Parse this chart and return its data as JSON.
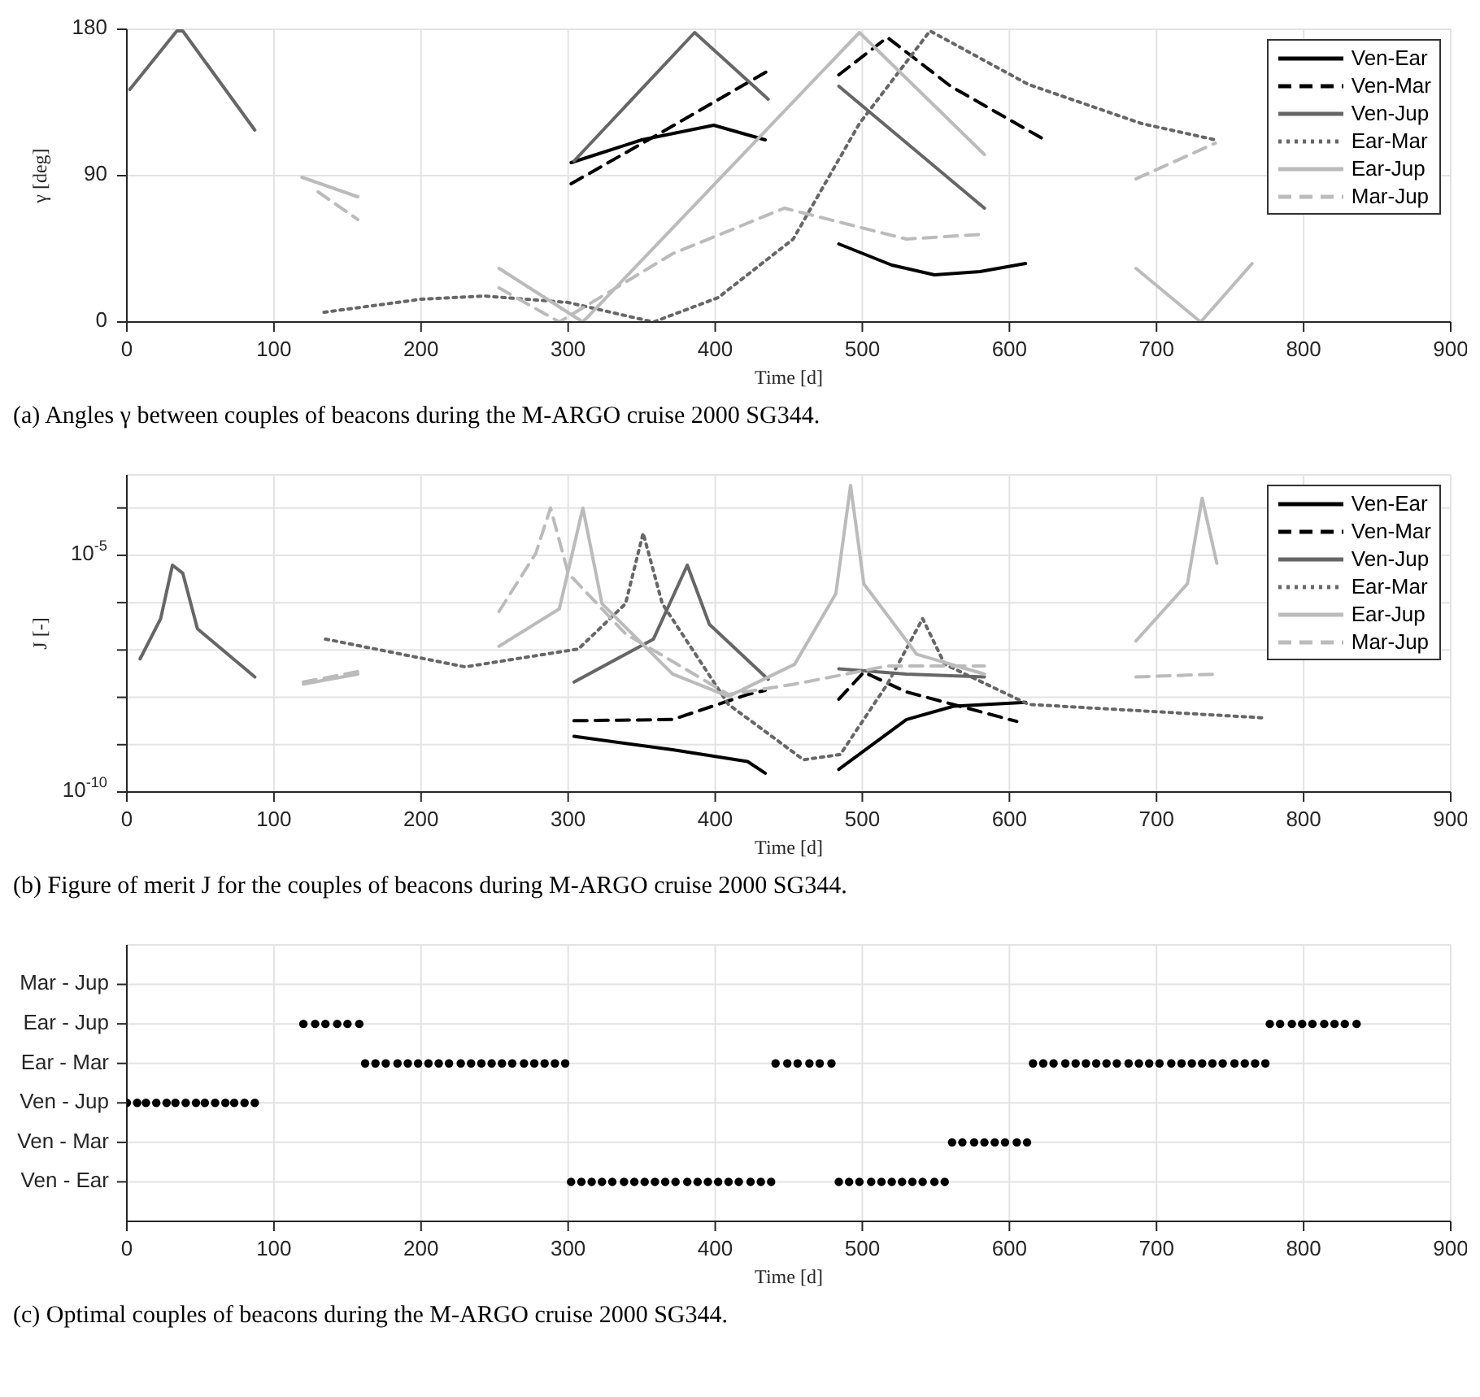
{
  "chart_data": [
    {
      "type": "line",
      "title": "(a) Angles γ between couples of beacons during the M-ARGO cruise 2000 SG344.",
      "xlabel": "Time [d]",
      "ylabel": "γ [deg]",
      "xlim": [
        0,
        900
      ],
      "xticks": [
        0,
        100,
        200,
        300,
        400,
        500,
        600,
        700,
        800,
        900
      ],
      "ylim": [
        0,
        180
      ],
      "yticks": [
        0,
        90,
        180
      ],
      "grid": true,
      "legend": "top right",
      "series": [
        {
          "name": "Ven-Ear",
          "color": "#000000",
          "line_style": "solid",
          "x": [
            302,
            350,
            399,
            434,
            460,
            484,
            520,
            549,
            580,
            611
          ],
          "values": [
            98,
            112,
            121,
            112,
            null,
            48,
            35,
            29,
            31,
            36
          ]
        },
        {
          "name": "Ven-Mar",
          "color": "#000000",
          "line_style": "dashed",
          "x": [
            302,
            370,
            437,
            460,
            484,
            517,
            560,
            626
          ],
          "values": [
            85,
            120,
            155,
            null,
            152,
            175,
            145,
            111
          ]
        },
        {
          "name": "Ven-Jup",
          "color": "#666666",
          "line_style": "solid",
          "x": [
            2,
            34,
            38,
            87,
            200,
            304,
            386,
            436,
            460,
            484,
            583
          ],
          "values": [
            143,
            179,
            179,
            118,
            null,
            99,
            178,
            137,
            null,
            145,
            70
          ]
        },
        {
          "name": "Ear-Mar",
          "color": "#666666",
          "line_style": "dotted",
          "x": [
            134,
            200,
            243,
            300,
            358,
            402,
            453,
            498,
            546,
            613,
            690,
            740
          ],
          "values": [
            6,
            14,
            16,
            12,
            0,
            15,
            51,
            122,
            179,
            146,
            122,
            112
          ]
        },
        {
          "name": "Ear-Jup",
          "color": "#bbbbbb",
          "line_style": "solid",
          "x": [
            119,
            157,
            200,
            253,
            310,
            498,
            583,
            640,
            686,
            730,
            765
          ],
          "values": [
            89,
            77,
            null,
            33,
            0,
            178,
            103,
            null,
            33,
            0,
            36
          ]
        },
        {
          "name": "Mar-Jup",
          "color": "#bbbbbb",
          "line_style": "dashed",
          "x": [
            130,
            157,
            200,
            253,
            294,
            371,
            447,
            530,
            583,
            640,
            686,
            740
          ],
          "values": [
            80,
            63,
            null,
            21,
            0,
            42,
            70,
            51,
            54,
            null,
            88,
            110
          ]
        }
      ]
    },
    {
      "type": "line",
      "title": "(b) Figure of merit J for the couples of beacons during M-ARGO cruise 2000 SG344.",
      "xlabel": "Time [d]",
      "ylabel": "J [-]",
      "log": "y",
      "xlim": [
        0,
        900
      ],
      "xticks": [
        0,
        100,
        200,
        300,
        400,
        500,
        600,
        700,
        800,
        900
      ],
      "ylim": [
        1e-10,
        0.0005
      ],
      "yticks": [
        {
          "value": 1e-10,
          "label": "10$^{-10}$"
        },
        {
          "value": 1e-09,
          "label": null
        },
        {
          "value": 1e-08,
          "label": null
        },
        {
          "value": 1e-07,
          "label": null
        },
        {
          "value": 1e-06,
          "label": null
        },
        {
          "value": 1e-05,
          "label": "10$^{-5}$"
        },
        {
          "value": 0.0001,
          "label": null
        }
      ],
      "grid": true,
      "legend": "top right",
      "series": [
        {
          "name": "Ven-Ear",
          "color": "#000000",
          "line_style": "solid",
          "x": [
            304,
            371,
            422,
            434,
            460,
            484,
            530,
            562,
            611
          ],
          "values": [
            1.5e-09,
            7.8e-10,
            4.4e-10,
            2.5e-10,
            null,
            3e-10,
            3.4e-09,
            6.5e-09,
            7.8e-09
          ]
        },
        {
          "name": "Ven-Mar",
          "color": "#000000",
          "line_style": "dashed",
          "x": [
            304,
            371,
            422,
            434,
            460,
            484,
            501,
            530,
            605
          ],
          "values": [
            3.2e-09,
            3.4e-09,
            1.15e-08,
            1.4e-08,
            null,
            9.1e-09,
            3.4e-08,
            1.3e-08,
            3.1e-09
          ]
        },
        {
          "name": "Ven-Jup",
          "color": "#666666",
          "line_style": "solid",
          "x": [
            9,
            23,
            31,
            38,
            48,
            87,
            200,
            304,
            358,
            381,
            396,
            436,
            460,
            484,
            530,
            583
          ],
          "values": [
            6.5e-08,
            4.6e-07,
            6.2e-06,
            4.2e-06,
            2.8e-07,
            2.7e-08,
            null,
            2.1e-08,
            1.7e-07,
            6.2e-06,
            3.5e-07,
            2.4e-08,
            null,
            4e-08,
            3.1e-08,
            2.7e-08
          ]
        },
        {
          "name": "Ear-Mar",
          "color": "#666666",
          "line_style": "dotted",
          "x": [
            135,
            230,
            307,
            339,
            351,
            364,
            409,
            460,
            485,
            517,
            541,
            556,
            613,
            772
          ],
          "values": [
            1.7e-07,
            4.4e-08,
            1.05e-07,
            9.5e-07,
            2.95e-05,
            9.5e-07,
            7.1e-09,
            4.8e-10,
            6.2e-10,
            1.9e-08,
            4.6e-07,
            5e-08,
            7.1e-09,
            3.7e-09
          ]
        },
        {
          "name": "Ear-Jup",
          "color": "#bbbbbb",
          "line_style": "solid",
          "x": [
            120,
            157,
            200,
            253,
            294,
            310,
            323,
            371,
            409,
            454,
            482,
            492,
            501,
            537,
            583,
            640,
            686,
            721,
            731,
            741
          ],
          "values": [
            1.9e-08,
            3.1e-08,
            null,
            1.2e-07,
            7.4e-07,
            0.0001,
            9.5e-07,
            3.1e-08,
            1.05e-08,
            5e-08,
            1.55e-06,
            0.0003,
            2.5e-06,
            8.1e-08,
            3.1e-08,
            null,
            1.55e-07,
            2.5e-06,
            0.00016,
            6.8e-06
          ]
        },
        {
          "name": "Mar-Jup",
          "color": "#bbbbbb",
          "line_style": "dashed",
          "x": [
            120,
            157,
            200,
            253,
            278,
            288,
            300,
            339,
            409,
            454,
            517,
            583,
            640,
            686,
            741
          ],
          "values": [
            2.1e-08,
            3.5e-08,
            null,
            6.5e-07,
            1.1e-05,
            0.0001,
            4.2e-06,
            2.2e-07,
            1.15e-08,
            1.9e-08,
            4.6e-08,
            4.6e-08,
            null,
            2.7e-08,
            3.1e-08
          ]
        }
      ]
    },
    {
      "type": "scatter",
      "orientation": "horizontal",
      "title": "(c) Optimal couples of beacons during the M-ARGO cruise 2000 SG344.",
      "xlabel": "Time [d]",
      "xlim": [
        0,
        900
      ],
      "xticks": [
        0,
        100,
        200,
        300,
        400,
        500,
        600,
        700,
        800,
        900
      ],
      "categories": [
        "Mar - Jup",
        "Ear - Jup",
        "Ear - Mar",
        "Ven - Jup",
        "Ven - Mar",
        "Ven - Ear"
      ],
      "grid": true,
      "marker": "circle",
      "series": [
        {
          "color": "#000000",
          "x": [
            "Ven - Jup",
            "Ven - Jup",
            "Ven - Jup",
            "Ven - Jup",
            "Ven - Jup",
            "Ven - Jup",
            "Ven - Jup",
            "Ven - Jup",
            "Ven - Jup",
            "Ven - Jup",
            "Ven - Jup",
            "Ven - Jup",
            "Ven - Jup",
            "Ven - Jup"
          ],
          "values": [
            0,
            7,
            13,
            20,
            27,
            33,
            40,
            47,
            53,
            60,
            67,
            73,
            80,
            87
          ]
        },
        {
          "color": "#000000",
          "x": [
            "Ear - Jup",
            "Ear - Jup",
            "Ear - Jup",
            "Ear - Jup",
            "Ear - Jup",
            "Ear - Jup",
            "Ear - Jup",
            "Ear - Jup",
            "Ear - Jup",
            "Ear - Jup",
            "Ear - Jup",
            "Ear - Jup",
            "Ear - Jup",
            "Ear - Jup",
            "Ear - Jup"
          ],
          "values": [
            120,
            128,
            135,
            143,
            150,
            158,
            777,
            784,
            792,
            799,
            806,
            814,
            821,
            828,
            836
          ]
        },
        {
          "color": "#000000",
          "x": [
            "Ear - Mar",
            "Ear - Mar",
            "Ear - Mar",
            "Ear - Mar",
            "Ear - Mar",
            "Ear - Mar",
            "Ear - Mar",
            "Ear - Mar",
            "Ear - Mar",
            "Ear - Mar",
            "Ear - Mar",
            "Ear - Mar",
            "Ear - Mar",
            "Ear - Mar",
            "Ear - Mar",
            "Ear - Mar",
            "Ear - Mar",
            "Ear - Mar",
            "Ear - Mar",
            "Ear - Mar",
            "Ear - Mar",
            "Ear - Mar",
            "Ear - Mar",
            "Ear - Mar",
            "Ear - Mar",
            "Ear - Mar",
            "Ear - Mar",
            "Ear - Mar",
            "Ear - Mar",
            "Ear - Mar",
            "Ear - Mar",
            "Ear - Mar",
            "Ear - Mar",
            "Ear - Mar",
            "Ear - Mar",
            "Ear - Mar",
            "Ear - Mar",
            "Ear - Mar",
            "Ear - Mar",
            "Ear - Mar",
            "Ear - Mar",
            "Ear - Mar",
            "Ear - Mar",
            "Ear - Mar",
            "Ear - Mar",
            "Ear - Mar",
            "Ear - Mar",
            "Ear - Mar",
            "Ear - Mar"
          ],
          "values": [
            162,
            169,
            176,
            184,
            191,
            198,
            205,
            212,
            219,
            227,
            234,
            241,
            248,
            255,
            262,
            270,
            277,
            284,
            291,
            298,
            441,
            449,
            456,
            464,
            471,
            479,
            616,
            623,
            630,
            638,
            645,
            652,
            659,
            666,
            673,
            681,
            688,
            695,
            702,
            710,
            717,
            724,
            731,
            738,
            745,
            753,
            760,
            767,
            774
          ]
        },
        {
          "color": "#000000",
          "x": [
            "Ven - Ear",
            "Ven - Ear",
            "Ven - Ear",
            "Ven - Ear",
            "Ven - Ear",
            "Ven - Ear",
            "Ven - Ear",
            "Ven - Ear",
            "Ven - Ear",
            "Ven - Ear",
            "Ven - Ear",
            "Ven - Ear",
            "Ven - Ear",
            "Ven - Ear",
            "Ven - Ear",
            "Ven - Ear",
            "Ven - Ear",
            "Ven - Ear",
            "Ven - Ear",
            "Ven - Ear",
            "Ven - Ear",
            "Ven - Ear",
            "Ven - Ear",
            "Ven - Ear",
            "Ven - Ear",
            "Ven - Ear",
            "Ven - Ear",
            "Ven - Ear",
            "Ven - Ear",
            "Ven - Ear",
            "Ven - Ear"
          ],
          "values": [
            302,
            309,
            316,
            323,
            330,
            338,
            345,
            352,
            359,
            366,
            373,
            381,
            388,
            395,
            402,
            409,
            416,
            424,
            431,
            438,
            484,
            491,
            498,
            506,
            513,
            520,
            527,
            534,
            541,
            549,
            556
          ]
        },
        {
          "color": "#000000",
          "x": [
            "Ven - Mar",
            "Ven - Mar",
            "Ven - Mar",
            "Ven - Mar",
            "Ven - Mar",
            "Ven - Mar",
            "Ven - Mar",
            "Ven - Mar"
          ],
          "values": [
            561,
            568,
            576,
            583,
            590,
            597,
            605,
            612
          ]
        }
      ]
    }
  ]
}
